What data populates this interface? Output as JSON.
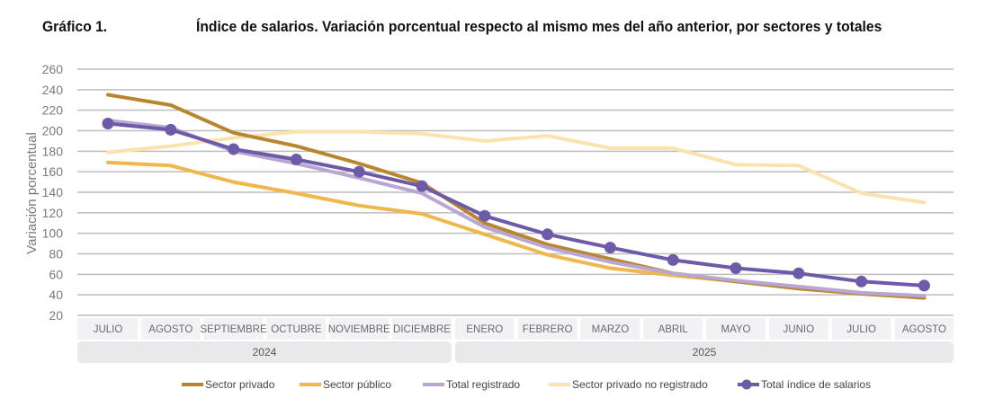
{
  "header": {
    "figure_label": "Gráfico 1.",
    "title": "Índice de salarios. Variación porcentual respecto al mismo mes del año anterior, por sectores y totales"
  },
  "chart_data": {
    "type": "line",
    "ylabel": "Variación porcentual",
    "ylim": [
      20,
      260
    ],
    "yticks": [
      20,
      40,
      60,
      80,
      100,
      120,
      140,
      160,
      180,
      200,
      220,
      240,
      260
    ],
    "grid": true,
    "categories": [
      "JULIO",
      "AGOSTO",
      "SEPTIEMBRE",
      "OCTUBRE",
      "NOVIEMBRE",
      "DICIEMBRE",
      "ENERO",
      "FEBRERO",
      "MARZO",
      "ABRIL",
      "MAYO",
      "JUNIO",
      "JULIO",
      "AGOSTO"
    ],
    "year_groups": [
      {
        "label": "2024",
        "start": 0,
        "end": 5
      },
      {
        "label": "2025",
        "start": 6,
        "end": 13
      }
    ],
    "legend_position": "bottom",
    "series": [
      {
        "name": "Sector privado no registrado",
        "color": "#fbe3ad",
        "markers": false,
        "values": [
          179,
          185,
          193,
          199,
          199,
          197,
          190,
          195,
          183,
          183,
          167,
          166,
          139,
          130
        ]
      },
      {
        "name": "Sector público",
        "color": "#efb74c",
        "markers": false,
        "values": [
          169,
          166,
          150,
          139,
          127,
          119,
          99,
          79,
          66,
          59,
          53,
          48,
          42,
          38
        ]
      },
      {
        "name": "Sector privado",
        "color": "#b8862e",
        "markers": false,
        "values": [
          235,
          225,
          198,
          185,
          168,
          149,
          110,
          89,
          75,
          61,
          53,
          46,
          41,
          37
        ]
      },
      {
        "name": "Total registrado",
        "color": "#b9a6d3",
        "markers": false,
        "values": [
          210,
          203,
          180,
          168,
          154,
          139,
          106,
          86,
          72,
          61,
          54,
          48,
          42,
          39
        ]
      },
      {
        "name": "Total índice de salarios",
        "color": "#6d5aa8",
        "markers": true,
        "values": [
          207,
          201,
          182,
          172,
          160,
          146,
          117,
          99,
          86,
          74,
          66,
          61,
          53,
          49
        ]
      }
    ],
    "legend_order": [
      "Sector privado",
      "Sector público",
      "Total registrado",
      "Sector privado no registrado",
      "Total índice de salarios"
    ]
  }
}
